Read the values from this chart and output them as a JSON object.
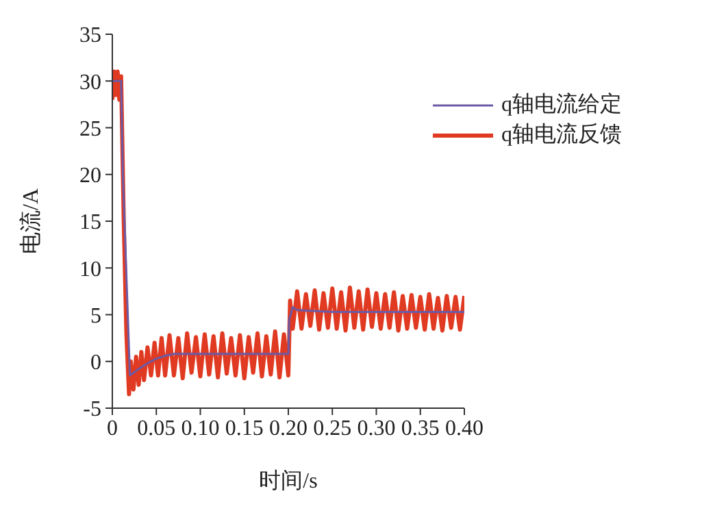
{
  "chart_data": {
    "type": "line",
    "xlabel": "时间/s",
    "ylabel": "电流/A",
    "xlim": [
      0,
      0.4
    ],
    "ylim": [
      -5,
      35
    ],
    "xticks": [
      0,
      0.05,
      {
        "value": 0.1,
        "label": "0.10"
      },
      0.15,
      {
        "value": 0.2,
        "label": "0.20"
      },
      0.25,
      {
        "value": 0.3,
        "label": "0.30"
      },
      0.35,
      {
        "value": 0.4,
        "label": "0.40"
      }
    ],
    "yticks": [
      -5,
      0,
      5,
      10,
      15,
      20,
      25,
      30,
      35
    ],
    "grid": false,
    "legend": "top right",
    "marker": "none",
    "line_style": "solid",
    "series": [
      {
        "name": "q轴电流反馈",
        "color": "#e03a22",
        "x": [
          0,
          0.002,
          0.004,
          0.006,
          0.008,
          0.01,
          0.013,
          0.016,
          0.019,
          0.021,
          0.024,
          0.027,
          0.03,
          0.033,
          0.036,
          0.04,
          0.044,
          0.048,
          0.052,
          0.056,
          0.06,
          0.065,
          0.07,
          0.075,
          0.08,
          0.085,
          0.09,
          0.095,
          0.1,
          0.105,
          0.11,
          0.115,
          0.12,
          0.125,
          0.13,
          0.135,
          0.14,
          0.145,
          0.15,
          0.155,
          0.16,
          0.165,
          0.17,
          0.175,
          0.18,
          0.185,
          0.19,
          0.195,
          0.2,
          0.202,
          0.205,
          0.21,
          0.215,
          0.22,
          0.225,
          0.23,
          0.235,
          0.24,
          0.245,
          0.25,
          0.255,
          0.26,
          0.265,
          0.27,
          0.275,
          0.28,
          0.285,
          0.29,
          0.295,
          0.3,
          0.305,
          0.31,
          0.315,
          0.32,
          0.325,
          0.33,
          0.335,
          0.34,
          0.345,
          0.35,
          0.355,
          0.36,
          0.365,
          0.37,
          0.375,
          0.38,
          0.385,
          0.39,
          0.395,
          0.4
        ],
        "values": [
          28,
          31,
          28.5,
          31,
          28,
          30.5,
          15,
          3,
          -3.5,
          0,
          -3,
          0.5,
          -2.5,
          1,
          -2,
          1.5,
          -1.5,
          2,
          -1.5,
          2.5,
          -1.5,
          2.8,
          -1.5,
          2.5,
          -1.8,
          3,
          -1.2,
          2.6,
          -1.6,
          2.9,
          -1.4,
          2.7,
          -1.7,
          3,
          -1.3,
          2.5,
          -1.5,
          2.8,
          -1.8,
          2.6,
          -1.2,
          3,
          -1.6,
          2.7,
          -1.4,
          3.2,
          -1.7,
          2.9,
          -1.5,
          6.5,
          3.5,
          7.5,
          3.5,
          7.2,
          3.8,
          7.6,
          3.4,
          7.3,
          3.6,
          7.8,
          3.5,
          7.4,
          3.3,
          7.9,
          3.6,
          7.5,
          3.4,
          7.7,
          3.7,
          7.3,
          3.5,
          7.2,
          3.6,
          7.4,
          3.3,
          7,
          3.5,
          7.1,
          3.6,
          6.9,
          3.4,
          7.2,
          3.5,
          6.8,
          3.3,
          7,
          3.6,
          6.9,
          3.4,
          7
        ]
      },
      {
        "name": "q轴电流给定",
        "color": "#6b5aa6",
        "x": [
          0,
          0.01,
          0.012,
          0.02,
          0.03,
          0.04,
          0.05,
          0.06,
          0.07,
          0.2,
          0.201,
          0.205,
          0.21,
          0.25,
          0.4
        ],
        "values": [
          30,
          30,
          20,
          -1.5,
          -0.8,
          -0.2,
          0.3,
          0.6,
          0.8,
          0.8,
          4.5,
          5.8,
          5.5,
          5.3,
          5.3
        ]
      }
    ]
  }
}
